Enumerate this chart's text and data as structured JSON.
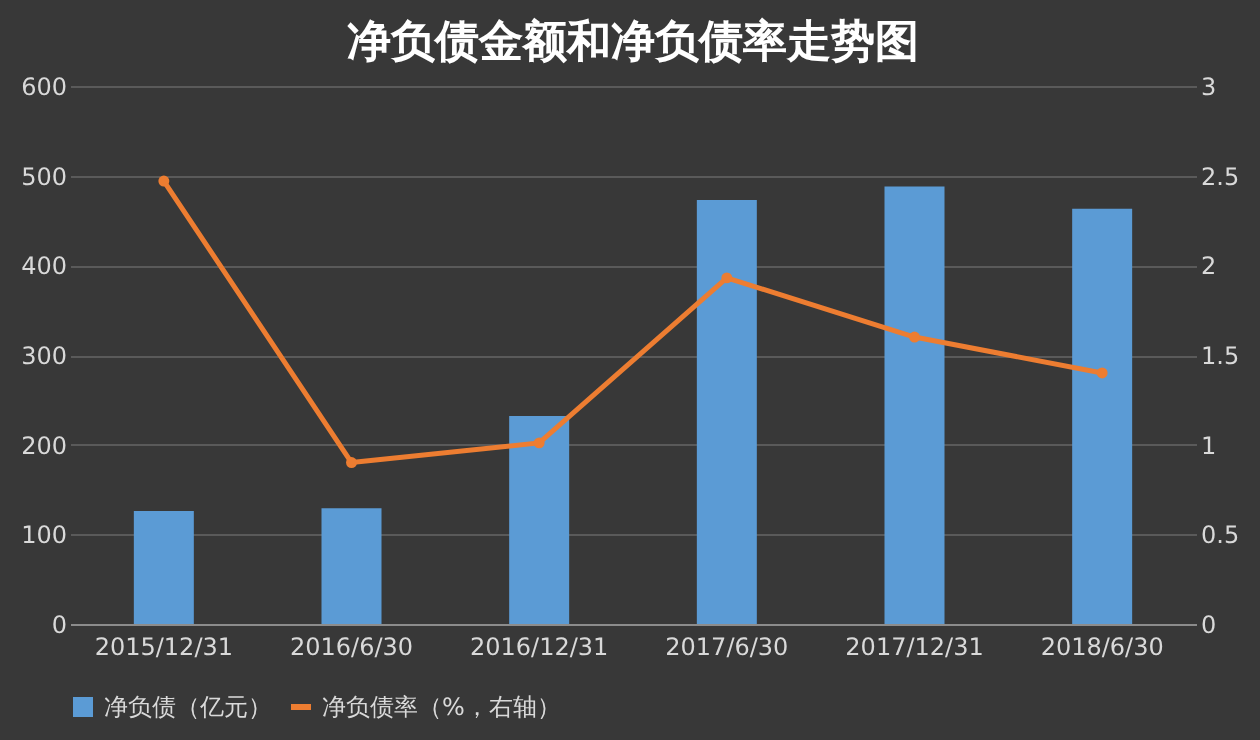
{
  "chart_data": {
    "type": "bar",
    "title": "净负债金额和净负债率走势图",
    "categories": [
      "2015/12/31",
      "2016/6/30",
      "2016/12/31",
      "2017/6/30",
      "2017/12/31",
      "2018/6/30"
    ],
    "series": [
      {
        "name": "净负债（亿元）",
        "color": "#5b9bd5",
        "values": [
          126,
          129,
          232,
          473,
          488,
          463
        ]
      },
      {
        "name": "净负债率（%，右轴）",
        "type": "line",
        "axis": "y2",
        "color": "#ed7d31",
        "marker": "circle",
        "values": [
          2.47,
          0.9,
          1.01,
          1.93,
          1.6,
          1.4
        ]
      }
    ],
    "ylim": [
      0,
      600
    ],
    "yticks": [
      0,
      100,
      200,
      300,
      400,
      500,
      600
    ],
    "y2lim": [
      0,
      3
    ],
    "y2ticks": [
      0,
      0.5,
      1,
      1.5,
      2,
      2.5,
      3
    ],
    "grid": "y",
    "legend": "bottom"
  }
}
